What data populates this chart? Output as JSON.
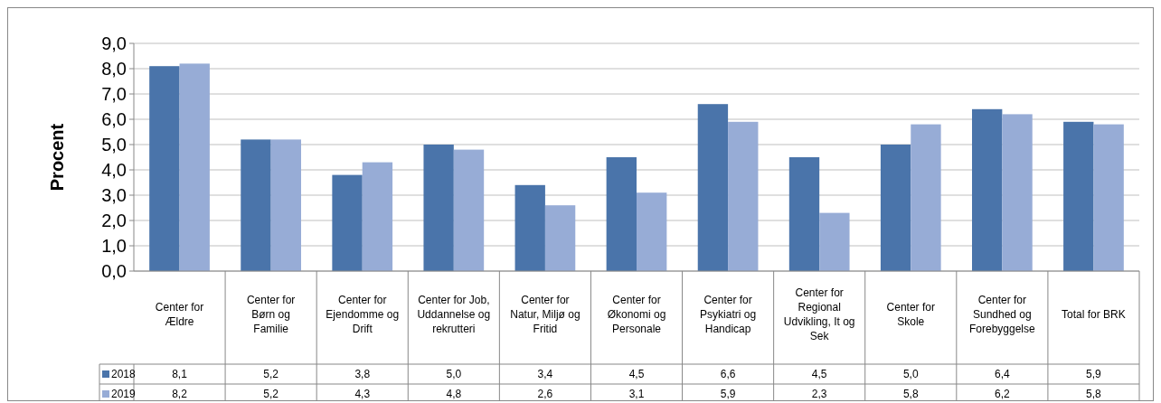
{
  "chart_data": {
    "type": "bar",
    "ylabel": "Procent",
    "categories": [
      "Center for Ældre",
      "Center for Børn og Familie",
      "Center for Ejendomme og Drift",
      "Center for Job, Uddannelse og rekrutteri",
      "Center for Natur, Miljø og Fritid",
      "Center for Økonomi og Personale",
      "Center for Psykiatri og Handicap",
      "Center for Regional Udvikling, It og Sek",
      "Center for Skole",
      "Center for Sundhed og Forebyggelse",
      "Total for BRK"
    ],
    "series": [
      {
        "name": "2018",
        "color": "#4a74aa",
        "values": [
          8.1,
          5.2,
          3.8,
          5.0,
          3.4,
          4.5,
          6.6,
          4.5,
          5.0,
          6.4,
          5.9
        ],
        "value_labels": [
          "8,1",
          "5,2",
          "3,8",
          "5,0",
          "3,4",
          "4,5",
          "6,6",
          "4,5",
          "5,0",
          "6,4",
          "5,9"
        ]
      },
      {
        "name": "2019",
        "color": "#97acd6",
        "values": [
          8.2,
          5.2,
          4.3,
          4.8,
          2.6,
          3.1,
          5.9,
          2.3,
          5.8,
          6.2,
          5.8
        ],
        "value_labels": [
          "8,2",
          "5,2",
          "4,3",
          "4,8",
          "2,6",
          "3,1",
          "5,9",
          "2,3",
          "5,8",
          "6,2",
          "5,8"
        ]
      }
    ],
    "ylim": [
      0,
      9
    ],
    "yticks": [
      {
        "value": 0,
        "label": "0,0"
      },
      {
        "value": 1,
        "label": "1,0"
      },
      {
        "value": 2,
        "label": "2,0"
      },
      {
        "value": 3,
        "label": "3,0"
      },
      {
        "value": 4,
        "label": "4,0"
      },
      {
        "value": 5,
        "label": "5,0"
      },
      {
        "value": 6,
        "label": "6,0"
      },
      {
        "value": 7,
        "label": "7,0"
      },
      {
        "value": 8,
        "label": "8,0"
      },
      {
        "value": 9,
        "label": "9,0"
      }
    ],
    "grid": "y",
    "legend": "bottom left"
  }
}
